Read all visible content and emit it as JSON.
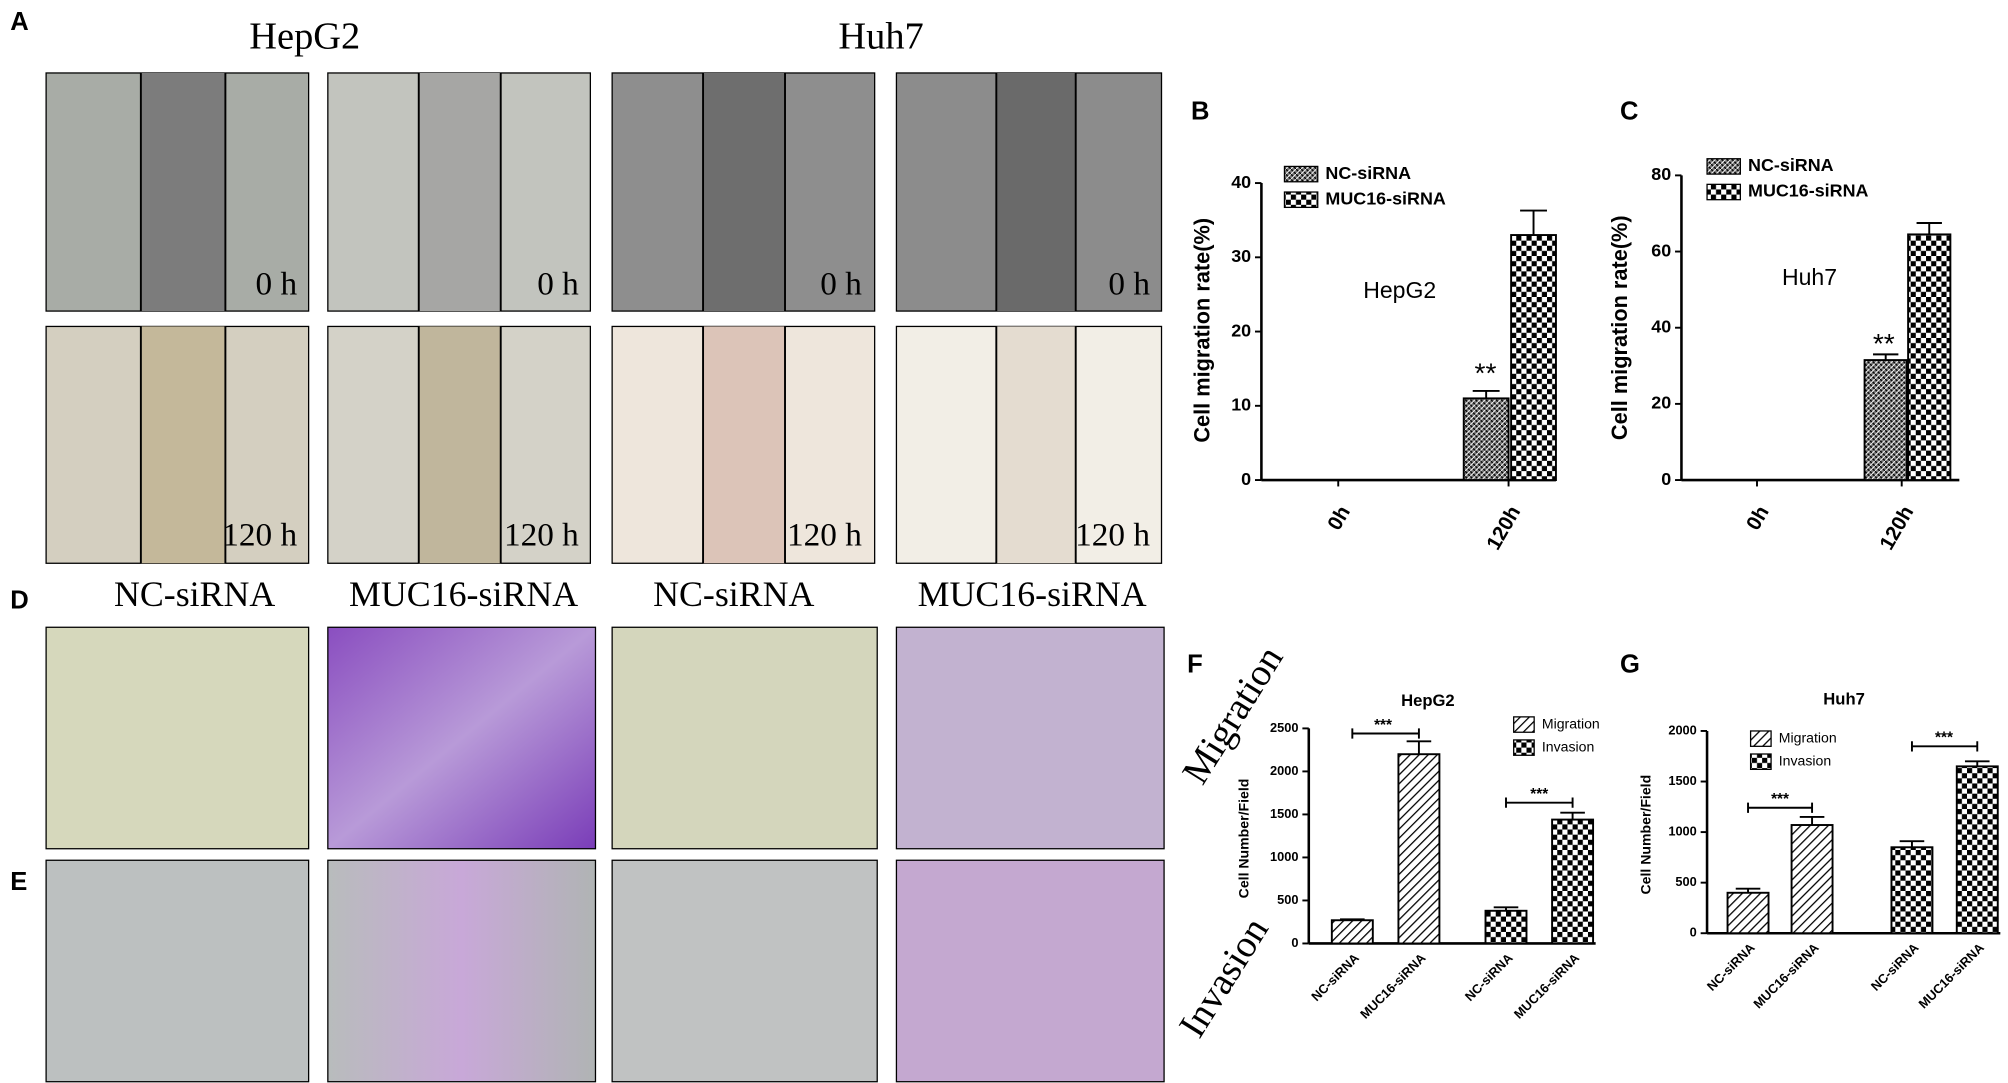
{
  "figure": {
    "panel_labels": [
      "A",
      "B",
      "C",
      "D",
      "E",
      "F",
      "G"
    ],
    "column_titles_a": [
      "HepG2",
      "Huh7"
    ],
    "time_labels": [
      "0 h",
      "0 h",
      "0 h",
      "0 h",
      "120 h",
      "120 h",
      "120 h",
      "120 h"
    ],
    "column_titles_d": [
      "NC-siRNA",
      "MUC16-siRNA",
      "NC-siRNA",
      "MUC16-siRNA"
    ],
    "row_labels": [
      "Migration",
      "Invasion"
    ]
  },
  "chart_data": [
    {
      "type": "bar",
      "ylabel": "Cell migration rate(%)",
      "categories": [
        "0h",
        "120h"
      ],
      "series": [
        {
          "name": "NC-siRNA",
          "pattern": "crosshatch",
          "color": "#000000",
          "values": [
            0,
            11
          ],
          "errors": [
            0,
            1
          ]
        },
        {
          "name": "MUC16-siRNA",
          "pattern": "checker",
          "color": "#000000",
          "values": [
            0,
            33
          ],
          "errors": [
            0,
            3.3
          ]
        }
      ],
      "ylim": [
        0,
        40
      ],
      "yticks": [
        0,
        10,
        20,
        30,
        40
      ],
      "annotations": [
        "HepG2",
        "**"
      ]
    },
    {
      "type": "bar",
      "ylabel": "Cell migration rate(%)",
      "categories": [
        "0h",
        "120h"
      ],
      "series": [
        {
          "name": "NC-siRNA",
          "pattern": "crosshatch",
          "color": "#000000",
          "values": [
            0,
            31.5
          ],
          "errors": [
            0,
            1.5
          ]
        },
        {
          "name": "MUC16-siRNA",
          "pattern": "checker",
          "color": "#000000",
          "values": [
            0,
            64.5
          ],
          "errors": [
            0,
            3
          ]
        }
      ],
      "ylim": [
        0,
        80
      ],
      "yticks": [
        0,
        20,
        40,
        60,
        80
      ],
      "annotations": [
        "Huh7",
        "**"
      ]
    },
    {
      "type": "bar",
      "title": "HepG2",
      "ylabel": "Cell Number/Field",
      "categories": [
        "NC-siRNA",
        "MUC16-siRNA"
      ],
      "series": [
        {
          "name": "Migration",
          "pattern": "hatch",
          "color": "#000000",
          "values": [
            270,
            2200
          ],
          "errors": [
            10,
            150
          ]
        },
        {
          "name": "Invasion",
          "pattern": "checker",
          "color": "#000000",
          "values": [
            380,
            1440
          ],
          "errors": [
            40,
            80
          ]
        }
      ],
      "ylim": [
        0,
        2500
      ],
      "yticks": [
        0,
        500,
        1000,
        1500,
        2000,
        2500
      ],
      "annotations": [
        "***",
        "***"
      ]
    },
    {
      "type": "bar",
      "title": "Huh7",
      "ylabel": "Cell Number/Field",
      "categories": [
        "NC-siRNA",
        "MUC16-siRNA"
      ],
      "series": [
        {
          "name": "Migration",
          "pattern": "hatch",
          "color": "#000000",
          "values": [
            400,
            1070
          ],
          "errors": [
            40,
            80
          ]
        },
        {
          "name": "Invasion",
          "pattern": "checker",
          "color": "#000000",
          "values": [
            850,
            1650
          ],
          "errors": [
            60,
            50
          ]
        }
      ],
      "ylim": [
        0,
        2000
      ],
      "yticks": [
        0,
        500,
        1000,
        1500,
        2000
      ],
      "annotations": [
        "***",
        "***"
      ]
    }
  ]
}
